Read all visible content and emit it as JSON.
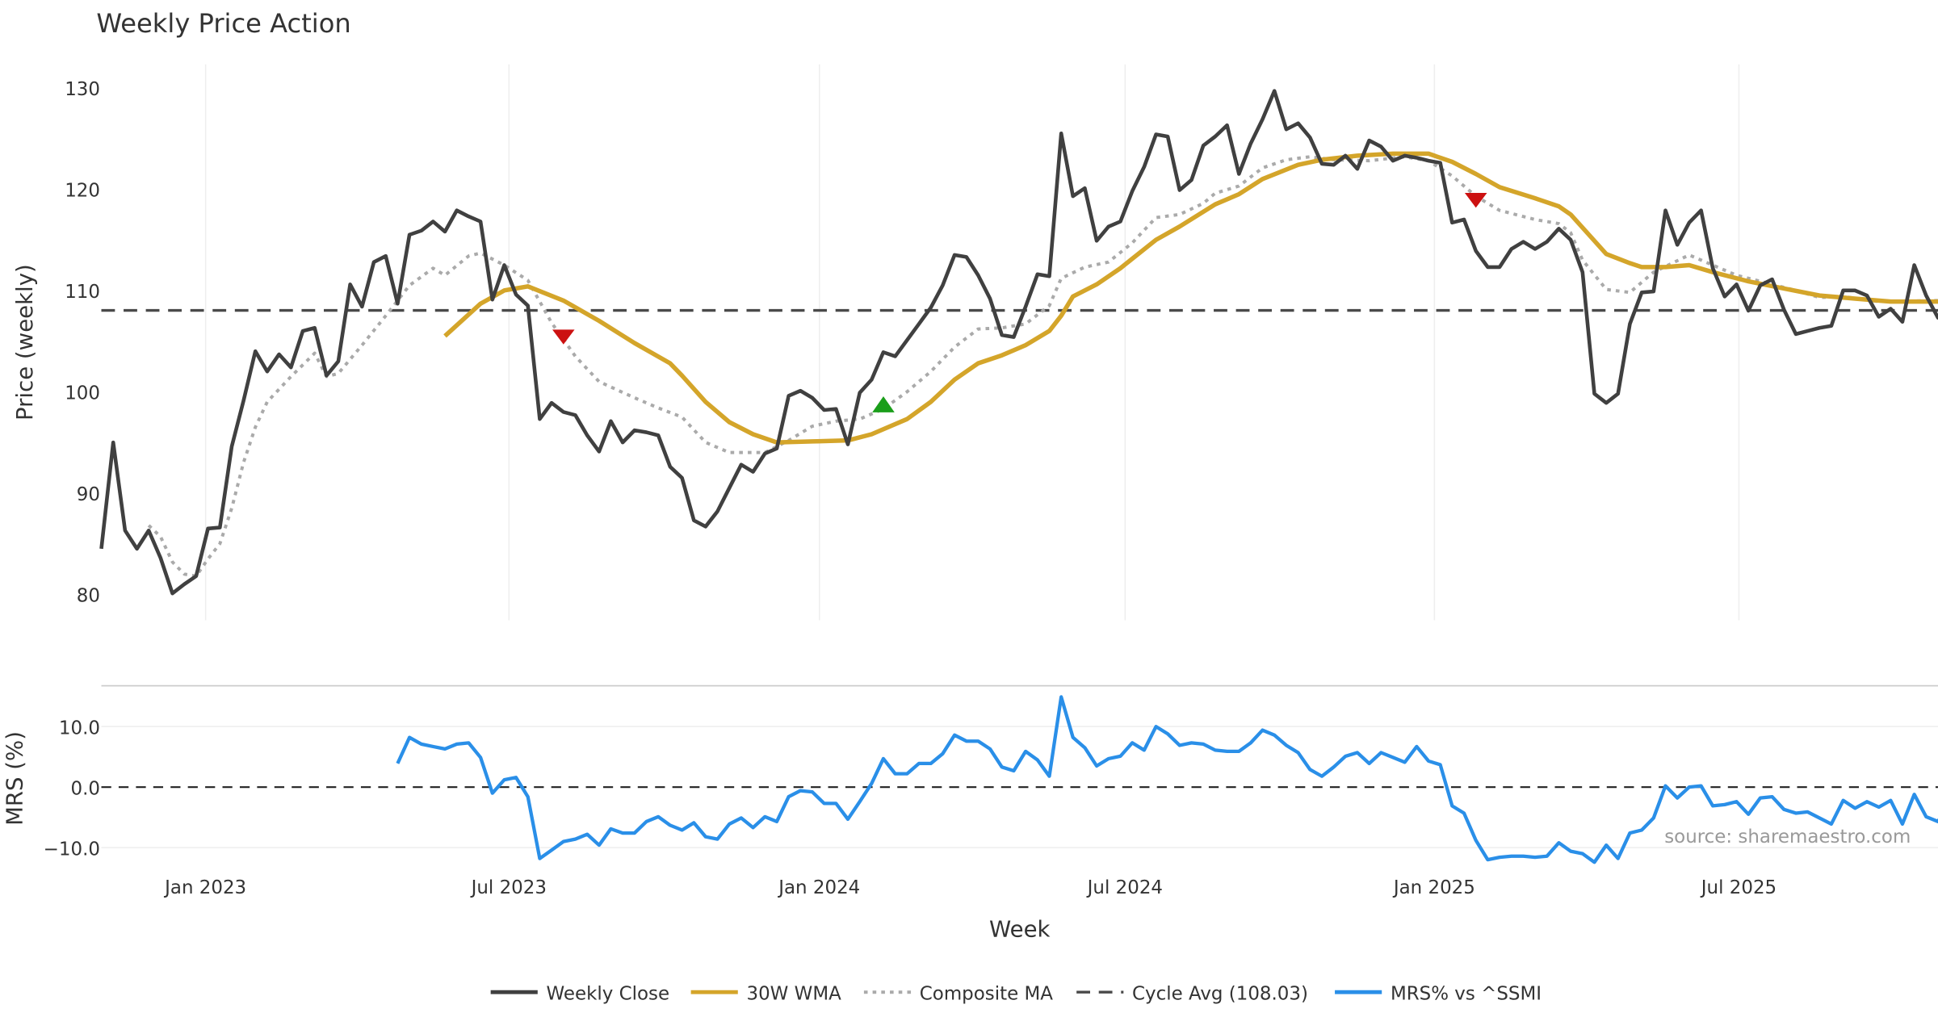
{
  "chart_data": [
    {
      "type": "line",
      "title": "Weekly Price Action",
      "ylabel": "Price (weekly)",
      "xlabel": "Week",
      "ylim": [
        77,
        131.5
      ],
      "yticks": [
        80,
        90,
        100,
        110,
        120,
        130
      ],
      "x_unit": "week index",
      "xlim": [
        0,
        155
      ],
      "grid": "vertical",
      "xticks": [
        {
          "week": 8.8,
          "label": "Jan 2023"
        },
        {
          "week": 34.4,
          "label": "Jul 2023"
        },
        {
          "week": 60.6,
          "label": "Jan 2024"
        },
        {
          "week": 86.4,
          "label": "Jul 2024"
        },
        {
          "week": 112.5,
          "label": "Jan 2025"
        },
        {
          "week": 138.2,
          "label": "Jul 2025"
        }
      ],
      "series": [
        {
          "name": "Weekly Close",
          "color": "#404040",
          "start_week": 0,
          "values": [
            84.5,
            95,
            86.3,
            84.5,
            86.3,
            83.6,
            80.1,
            81,
            81.8,
            86.5,
            86.6,
            94.6,
            99.1,
            104,
            102,
            103.7,
            102.4,
            106,
            106.3,
            101.6,
            103,
            110.6,
            108.4,
            112.8,
            113.4,
            108.7,
            115.5,
            115.9,
            116.8,
            115.8,
            117.9,
            117.3,
            116.8,
            109.1,
            112.5,
            109.6,
            108.5,
            97.3,
            98.9,
            98,
            97.7,
            95.7,
            94.1,
            97.1,
            95,
            96.2,
            96,
            95.7,
            92.6,
            91.5,
            87.3,
            86.7,
            88.2,
            90.5,
            92.8,
            92.1,
            93.9,
            94.4,
            99.6,
            100.1,
            99.4,
            98.2,
            98.3,
            94.8,
            99.9,
            101.2,
            103.9,
            103.5,
            105.1,
            106.7,
            108.3,
            110.5,
            113.5,
            113.3,
            111.5,
            109.2,
            105.6,
            105.4,
            108.4,
            111.6,
            111.4,
            125.5,
            119.3,
            120.1,
            114.9,
            116.3,
            116.8,
            119.8,
            122.2,
            125.4,
            125.2,
            119.9,
            120.9,
            124.3,
            125.2,
            126.3,
            121.5,
            124.5,
            126.9,
            129.7,
            125.9,
            126.5,
            125.1,
            122.5,
            122.4,
            123.3,
            122,
            124.8,
            124.2,
            122.8,
            123.3,
            123.1,
            122.8,
            122.6,
            116.7,
            117,
            113.9,
            112.3,
            112.3,
            114.1,
            114.8,
            114.1,
            114.8,
            116.1,
            115,
            111.8,
            99.8,
            98.9,
            99.8,
            106.7,
            109.8,
            109.9,
            117.9,
            114.5,
            116.7,
            117.9,
            112.2,
            109.4,
            110.6,
            108,
            110.5,
            111.1,
            108.1,
            105.7,
            106,
            106.3,
            106.5,
            110,
            110,
            109.5,
            107.4,
            108.2,
            106.9,
            112.5,
            109.5,
            107.3,
            109.6
          ]
        },
        {
          "name": "30W WMA",
          "color": "#D4A52A",
          "points": [
            [
              29,
              105.5
            ],
            [
              32,
              108.7
            ],
            [
              34,
              110
            ],
            [
              36,
              110.4
            ],
            [
              39,
              109
            ],
            [
              42,
              107
            ],
            [
              45,
              104.8
            ],
            [
              48,
              102.8
            ],
            [
              49,
              101.6
            ],
            [
              51,
              99
            ],
            [
              53,
              97
            ],
            [
              55,
              95.8
            ],
            [
              57,
              95
            ],
            [
              60,
              95.1
            ],
            [
              63,
              95.2
            ],
            [
              65,
              95.8
            ],
            [
              68,
              97.3
            ],
            [
              70,
              99
            ],
            [
              72,
              101.2
            ],
            [
              74,
              102.8
            ],
            [
              76,
              103.6
            ],
            [
              78,
              104.6
            ],
            [
              80,
              106
            ],
            [
              81,
              107.5
            ],
            [
              82,
              109.4
            ],
            [
              84,
              110.6
            ],
            [
              86,
              112.2
            ],
            [
              89,
              115
            ],
            [
              91,
              116.3
            ],
            [
              94,
              118.5
            ],
            [
              96,
              119.5
            ],
            [
              98,
              121
            ],
            [
              101,
              122.4
            ],
            [
              103,
              122.9
            ],
            [
              106,
              123.3
            ],
            [
              109,
              123.5
            ],
            [
              112,
              123.5
            ],
            [
              114,
              122.7
            ],
            [
              116,
              121.5
            ],
            [
              118,
              120.2
            ],
            [
              121,
              119.1
            ],
            [
              123,
              118.3
            ],
            [
              124,
              117.5
            ],
            [
              127,
              113.6
            ],
            [
              129,
              112.7
            ],
            [
              130,
              112.3
            ],
            [
              132,
              112.3
            ],
            [
              134,
              112.5
            ],
            [
              136,
              111.8
            ],
            [
              139,
              110.9
            ],
            [
              142,
              110.2
            ],
            [
              145,
              109.5
            ],
            [
              148,
              109.2
            ],
            [
              151,
              108.9
            ],
            [
              155,
              108.9
            ]
          ]
        },
        {
          "name": "Composite MA",
          "color": "#AAAAAA",
          "points": [
            [
              4,
              86.8
            ],
            [
              5,
              85.7
            ],
            [
              6,
              83.2
            ],
            [
              7,
              82
            ],
            [
              8,
              81.8
            ],
            [
              9,
              83.5
            ],
            [
              10,
              85
            ],
            [
              11,
              88.5
            ],
            [
              12,
              93
            ],
            [
              13,
              96.5
            ],
            [
              14,
              99
            ],
            [
              16,
              101.5
            ],
            [
              18,
              103.8
            ],
            [
              19,
              101.5
            ],
            [
              20,
              101.8
            ],
            [
              22,
              104.6
            ],
            [
              24,
              107.5
            ],
            [
              26,
              110.5
            ],
            [
              28,
              112.2
            ],
            [
              29,
              111.5
            ],
            [
              31,
              113.4
            ],
            [
              32,
              113.7
            ],
            [
              34,
              112.5
            ],
            [
              36,
              111
            ],
            [
              38,
              106.8
            ],
            [
              40,
              103.5
            ],
            [
              42,
              101
            ],
            [
              45,
              99.4
            ],
            [
              47,
              98.4
            ],
            [
              49,
              97.5
            ],
            [
              51,
              95
            ],
            [
              53,
              94
            ],
            [
              56,
              94
            ],
            [
              58,
              95.2
            ],
            [
              60,
              96.6
            ],
            [
              62,
              97.1
            ],
            [
              64,
              97.3
            ],
            [
              66,
              98.3
            ],
            [
              68,
              100
            ],
            [
              70,
              102
            ],
            [
              72,
              104.4
            ],
            [
              74,
              106.2
            ],
            [
              76,
              106.3
            ],
            [
              78,
              106.7
            ],
            [
              80,
              108.5
            ],
            [
              81,
              111.2
            ],
            [
              83,
              112.3
            ],
            [
              85,
              112.8
            ],
            [
              87,
              114.7
            ],
            [
              89,
              117.2
            ],
            [
              91,
              117.5
            ],
            [
              93,
              118.6
            ],
            [
              94,
              119.6
            ],
            [
              96,
              120.3
            ],
            [
              98,
              122.1
            ],
            [
              100,
              122.9
            ],
            [
              102,
              123.2
            ],
            [
              104,
              122.9
            ],
            [
              107,
              122.8
            ],
            [
              110,
              123.2
            ],
            [
              112,
              122.8
            ],
            [
              114,
              121.3
            ],
            [
              116,
              119.3
            ],
            [
              118,
              117.9
            ],
            [
              121,
              117
            ],
            [
              123,
              116.6
            ],
            [
              124,
              115.7
            ],
            [
              125,
              113
            ],
            [
              127,
              110.1
            ],
            [
              129,
              109.8
            ],
            [
              131,
              111.8
            ],
            [
              134,
              113.5
            ],
            [
              136,
              112.5
            ],
            [
              138,
              111.5
            ],
            [
              140,
              110.9
            ],
            [
              143,
              110
            ],
            [
              145,
              109.3
            ],
            [
              147,
              109.4
            ],
            [
              150,
              108.9
            ],
            [
              155,
              109
            ]
          ]
        },
        {
          "name": "Cycle Avg (108.03)",
          "color": "#4A4A4A",
          "constant": 108.03
        }
      ],
      "signals": [
        {
          "type": "sell",
          "week": 39,
          "value": 105.4,
          "color": "#CC1111"
        },
        {
          "type": "buy",
          "week": 66,
          "value": 98.7,
          "color": "#1A9E1A"
        },
        {
          "type": "sell",
          "week": 116,
          "value": 118.9,
          "color": "#CC1111"
        }
      ]
    },
    {
      "type": "line",
      "ylabel": "MRS (%)",
      "ylim": [
        -13.5,
        16.5
      ],
      "yticks": [
        {
          "value": 10,
          "label": "10.0"
        },
        {
          "value": 0,
          "label": "0.0"
        },
        {
          "value": -10,
          "label": "−10.0"
        }
      ],
      "series": [
        {
          "name": "MRS% vs ^SSMI",
          "color": "#2A8FE8",
          "start_week": 25,
          "values": [
            3.9,
            8.2,
            7.1,
            6.7,
            6.3,
            7.1,
            7.3,
            4.9,
            -1,
            1.2,
            1.6,
            -1.6,
            -11.8,
            -10.4,
            -9,
            -8.6,
            -7.8,
            -9.6,
            -6.9,
            -7.6,
            -7.6,
            -5.7,
            -4.9,
            -6.3,
            -7.1,
            -5.9,
            -8.2,
            -8.6,
            -6.1,
            -5.1,
            -6.7,
            -4.9,
            -5.7,
            -1.6,
            -0.6,
            -0.8,
            -2.7,
            -2.7,
            -5.3,
            -2.4,
            0.6,
            4.7,
            2.2,
            2.2,
            3.9,
            3.9,
            5.5,
            8.6,
            7.6,
            7.6,
            6.3,
            3.3,
            2.7,
            5.9,
            4.5,
            1.8,
            14.9,
            8.2,
            6.5,
            3.5,
            4.7,
            5.1,
            7.3,
            6.1,
            10,
            8.8,
            6.9,
            7.3,
            7.1,
            6.1,
            5.9,
            5.9,
            7.3,
            9.4,
            8.6,
            6.9,
            5.7,
            2.9,
            1.8,
            3.3,
            5.1,
            5.7,
            3.9,
            5.7,
            4.9,
            4.1,
            6.7,
            4.3,
            3.7,
            -3.1,
            -4.3,
            -8.8,
            -12,
            -11.6,
            -11.4,
            -11.4,
            -11.6,
            -11.4,
            -9.2,
            -10.6,
            -11,
            -12.4,
            -9.6,
            -11.8,
            -7.6,
            -7.1,
            -5.1,
            0.2,
            -1.8,
            0,
            0.2,
            -3.1,
            -2.9,
            -2.4,
            -4.5,
            -1.8,
            -1.6,
            -3.7,
            -4.3,
            -4.1,
            -5.1,
            -6.1,
            -2.2,
            -3.5,
            -2.4,
            -3.3,
            -2.2,
            -6.1,
            -1.2,
            -4.9,
            -5.7,
            -2.2
          ]
        }
      ],
      "reference_line": 0,
      "annotation": "source: sharemaestro.com"
    }
  ],
  "legend": [
    {
      "label": "Weekly Close",
      "color": "#404040",
      "style": "solid"
    },
    {
      "label": "30W WMA",
      "color": "#D4A52A",
      "style": "solid"
    },
    {
      "label": "Composite MA",
      "color": "#AAAAAA",
      "style": "dotted"
    },
    {
      "label": "Cycle Avg (108.03)",
      "color": "#4A4A4A",
      "style": "dashed"
    },
    {
      "label": "MRS% vs ^SSMI",
      "color": "#2A8FE8",
      "style": "solid"
    }
  ],
  "legend_position": "bottom-center"
}
